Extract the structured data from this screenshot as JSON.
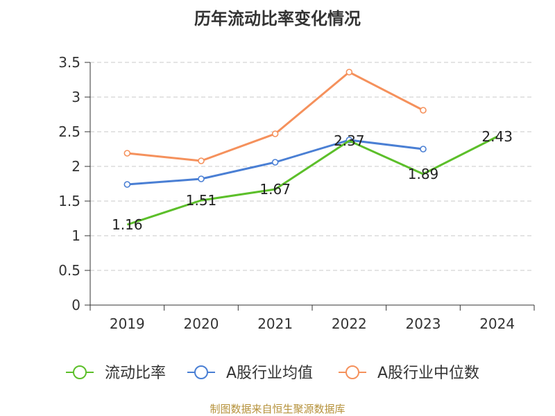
{
  "chart_data": {
    "type": "line",
    "title": "历年流动比率变化情况",
    "categories": [
      "2019",
      "2020",
      "2021",
      "2022",
      "2023",
      "2024"
    ],
    "ylim": [
      0,
      3.5
    ],
    "yticks": [
      "0",
      "0.5",
      "1",
      "1.5",
      "2",
      "2.5",
      "3",
      "3.5"
    ],
    "grid": "horizontal-dashed",
    "legend_position": "bottom",
    "series": [
      {
        "name": "流动比率",
        "color": "#5cbf2a",
        "values": [
          1.16,
          1.51,
          1.67,
          2.37,
          1.89,
          2.43
        ],
        "labels": [
          "1.16",
          "1.51",
          "1.67",
          "2.37",
          "1.89",
          "2.43"
        ]
      },
      {
        "name": "A股行业均值",
        "color": "#4a7fd4",
        "values": [
          1.74,
          1.82,
          2.06,
          2.38,
          2.25,
          null
        ]
      },
      {
        "name": "A股行业中位数",
        "color": "#f5915c",
        "values": [
          2.19,
          2.08,
          2.47,
          3.36,
          2.81,
          null
        ]
      }
    ]
  },
  "footer": "制图数据来自恒生聚源数据库"
}
